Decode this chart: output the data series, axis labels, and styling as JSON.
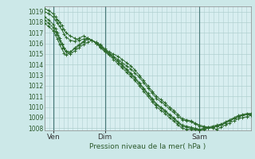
{
  "title": "",
  "xlabel": "Pression niveau de la mer( hPa )",
  "ylabel": "",
  "bg_color": "#cce8e8",
  "plot_bg_color": "#d8eef0",
  "grid_color": "#b0d0d0",
  "line_color": "#2d6a2d",
  "xlim": [
    0,
    96
  ],
  "ylim": [
    1007.8,
    1019.5
  ],
  "yticks": [
    1008,
    1009,
    1010,
    1011,
    1012,
    1013,
    1014,
    1015,
    1016,
    1017,
    1018,
    1019
  ],
  "xtick_positions": [
    4,
    28,
    72
  ],
  "xtick_labels": [
    "Ven",
    "Dim",
    "Sam"
  ],
  "vlines": [
    4,
    28,
    72
  ],
  "lines": [
    {
      "x": [
        0,
        2,
        4,
        5,
        6,
        7,
        8,
        9,
        10,
        12,
        14,
        16,
        18,
        20,
        22,
        24,
        26,
        28,
        30,
        32,
        34,
        36,
        38,
        40,
        42,
        44,
        46,
        48,
        50,
        52,
        54,
        56,
        58,
        60,
        62,
        64,
        66,
        68,
        70,
        72,
        74,
        76,
        78,
        80,
        82,
        84,
        86,
        88,
        90,
        92,
        94,
        96
      ],
      "y": [
        1019.3,
        1019.1,
        1018.8,
        1018.5,
        1018.2,
        1018.0,
        1017.7,
        1017.3,
        1017.0,
        1016.7,
        1016.5,
        1016.3,
        1016.4,
        1016.5,
        1016.3,
        1016.1,
        1015.9,
        1015.5,
        1015.2,
        1015.0,
        1014.8,
        1014.5,
        1014.2,
        1013.9,
        1013.5,
        1013.0,
        1012.5,
        1012.0,
        1011.5,
        1011.0,
        1010.7,
        1010.4,
        1010.0,
        1009.7,
        1009.3,
        1008.9,
        1008.8,
        1008.7,
        1008.5,
        1008.3,
        1008.2,
        1008.1,
        1008.0,
        1007.9,
        1008.1,
        1008.3,
        1008.5,
        1008.7,
        1008.9,
        1009.0,
        1009.1,
        1009.2
      ]
    },
    {
      "x": [
        0,
        2,
        4,
        5,
        6,
        7,
        8,
        9,
        10,
        12,
        14,
        16,
        18,
        20,
        22,
        24,
        26,
        28,
        30,
        32,
        34,
        36,
        38,
        40,
        42,
        44,
        46,
        48,
        50,
        52,
        54,
        56,
        58,
        60,
        62,
        64,
        66,
        68,
        70,
        72,
        74,
        76,
        78,
        80,
        82,
        84,
        86,
        88,
        90,
        92,
        94,
        96
      ],
      "y": [
        1019.0,
        1018.8,
        1018.5,
        1018.2,
        1017.9,
        1017.6,
        1017.3,
        1016.9,
        1016.6,
        1016.3,
        1016.2,
        1016.5,
        1016.7,
        1016.5,
        1016.3,
        1016.0,
        1015.7,
        1015.4,
        1015.1,
        1014.8,
        1014.5,
        1014.2,
        1013.9,
        1013.6,
        1013.2,
        1012.8,
        1012.3,
        1011.8,
        1011.3,
        1010.8,
        1010.5,
        1010.2,
        1009.8,
        1009.5,
        1009.1,
        1008.8,
        1008.7,
        1008.6,
        1008.4,
        1008.2,
        1008.1,
        1008.0,
        1008.1,
        1008.2,
        1008.3,
        1008.5,
        1008.7,
        1008.9,
        1009.1,
        1009.2,
        1009.3,
        1009.3
      ]
    },
    {
      "x": [
        0,
        2,
        4,
        5,
        6,
        7,
        8,
        9,
        10,
        12,
        14,
        16,
        18,
        20,
        22,
        24,
        26,
        28,
        30,
        32,
        34,
        36,
        38,
        40,
        42,
        44,
        46,
        48,
        50,
        52,
        54,
        56,
        58,
        60,
        62,
        64,
        66,
        68,
        70,
        72,
        74,
        76,
        78,
        80,
        82,
        84,
        86,
        88,
        90,
        92,
        94,
        96
      ],
      "y": [
        1018.2,
        1017.9,
        1017.5,
        1017.1,
        1016.8,
        1016.3,
        1015.9,
        1015.5,
        1015.3,
        1015.2,
        1015.5,
        1015.8,
        1016.1,
        1016.4,
        1016.3,
        1016.0,
        1015.7,
        1015.3,
        1015.0,
        1014.7,
        1014.3,
        1014.0,
        1013.6,
        1013.2,
        1012.8,
        1012.3,
        1011.8,
        1011.3,
        1010.8,
        1010.3,
        1010.0,
        1009.7,
        1009.3,
        1009.0,
        1008.6,
        1008.3,
        1008.2,
        1008.1,
        1008.0,
        1007.9,
        1008.0,
        1008.1,
        1008.2,
        1008.3,
        1008.4,
        1008.6,
        1008.8,
        1009.0,
        1009.2,
        1009.3,
        1009.4,
        1009.4
      ]
    },
    {
      "x": [
        0,
        2,
        4,
        5,
        6,
        7,
        8,
        9,
        10,
        12,
        14,
        16,
        18,
        20,
        22,
        24,
        26,
        28,
        30,
        32,
        34,
        36,
        38,
        40,
        42,
        44,
        46,
        48,
        50,
        52,
        54,
        56,
        58,
        60,
        62,
        64,
        66,
        68,
        70,
        72,
        74,
        76,
        78,
        80,
        82,
        84,
        86,
        88,
        90,
        92,
        94,
        96
      ],
      "y": [
        1017.9,
        1017.6,
        1017.2,
        1016.8,
        1016.4,
        1015.9,
        1015.5,
        1015.1,
        1014.9,
        1015.2,
        1015.6,
        1015.9,
        1016.2,
        1016.5,
        1016.3,
        1016.0,
        1015.6,
        1015.2,
        1014.9,
        1014.5,
        1014.1,
        1013.7,
        1013.3,
        1012.9,
        1012.5,
        1012.0,
        1011.5,
        1011.0,
        1010.5,
        1010.0,
        1009.7,
        1009.4,
        1009.0,
        1008.7,
        1008.3,
        1008.0,
        1007.9,
        1007.9,
        1007.9,
        1007.8,
        1007.9,
        1008.0,
        1008.1,
        1008.2,
        1008.3,
        1008.5,
        1008.7,
        1008.9,
        1009.1,
        1009.2,
        1009.3,
        1009.3
      ]
    },
    {
      "x": [
        0,
        2,
        4,
        5,
        6,
        7,
        8,
        9,
        10,
        12,
        14,
        16,
        18,
        20,
        22,
        24,
        26,
        28,
        30,
        32,
        34,
        36,
        38,
        40,
        42,
        44,
        46,
        48,
        50,
        52,
        54,
        56,
        58,
        60,
        62,
        64,
        66,
        68,
        70,
        72,
        74,
        76,
        78,
        80,
        82,
        84,
        86,
        88,
        90,
        92,
        94,
        96
      ],
      "y": [
        1018.5,
        1018.2,
        1017.8,
        1017.4,
        1017.0,
        1016.5,
        1016.0,
        1015.6,
        1015.2,
        1015.0,
        1015.3,
        1015.6,
        1015.9,
        1016.1,
        1016.3,
        1016.1,
        1015.8,
        1015.4,
        1015.0,
        1014.7,
        1014.3,
        1013.9,
        1013.5,
        1013.1,
        1012.7,
        1012.2,
        1011.7,
        1011.2,
        1010.7,
        1010.2,
        1009.9,
        1009.6,
        1009.2,
        1008.9,
        1008.5,
        1008.2,
        1008.1,
        1008.0,
        1007.9,
        1007.9,
        1007.9,
        1008.0,
        1008.1,
        1008.2,
        1008.3,
        1008.5,
        1008.7,
        1008.9,
        1009.1,
        1009.2,
        1009.3,
        1009.3
      ]
    }
  ]
}
